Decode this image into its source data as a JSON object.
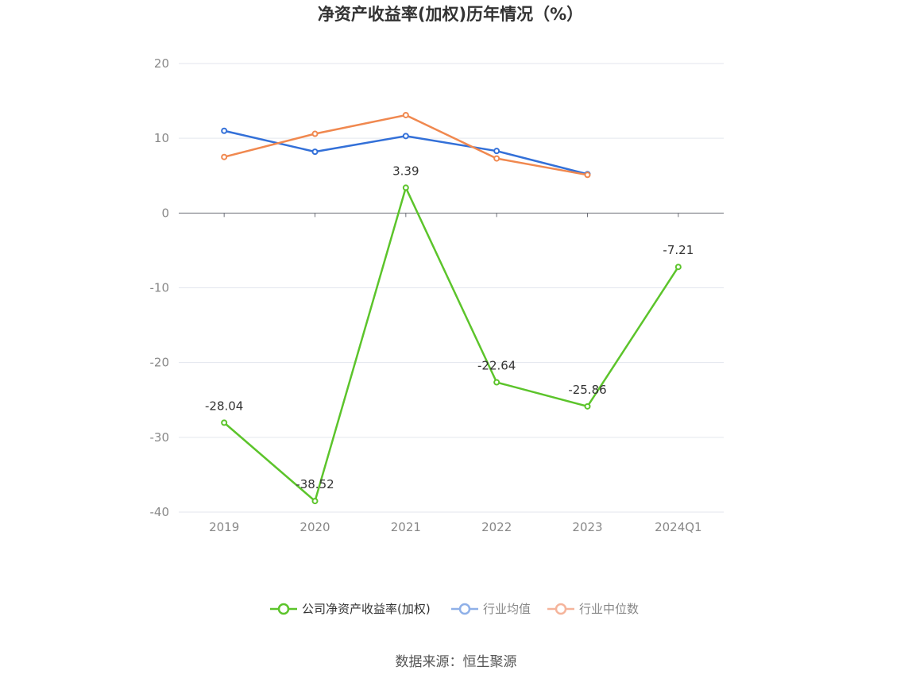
{
  "chart_data": {
    "type": "line",
    "title": "净资产收益率(加权)历年情况（%）",
    "categories": [
      "2019",
      "2020",
      "2021",
      "2022",
      "2023",
      "2024Q1"
    ],
    "ylim": [
      -40,
      20
    ],
    "yticks": [
      20,
      10,
      0,
      -10,
      -20,
      -30,
      -40
    ],
    "grid": true,
    "legend_position": "bottom",
    "series": [
      {
        "name": "公司净资产收益率(加权)",
        "color": "#5cc42b",
        "values": [
          -28.04,
          -38.52,
          3.39,
          -22.64,
          -25.86,
          -7.21
        ],
        "labels": [
          "-28.04",
          "-38.52",
          "3.39",
          "-22.64",
          "-25.86",
          "-7.21"
        ]
      },
      {
        "name": "行业均值",
        "color": "#3370d8",
        "values": [
          11.0,
          8.2,
          10.3,
          8.3,
          5.2,
          null
        ]
      },
      {
        "name": "行业中位数",
        "color": "#f0884f",
        "values": [
          7.5,
          10.6,
          13.1,
          7.3,
          5.1,
          null
        ]
      }
    ]
  },
  "legend_colors": {
    "company": "#5cc42b",
    "avg": "#8fb0e8",
    "median": "#f5b49b"
  },
  "source": "数据来源：恒生聚源"
}
